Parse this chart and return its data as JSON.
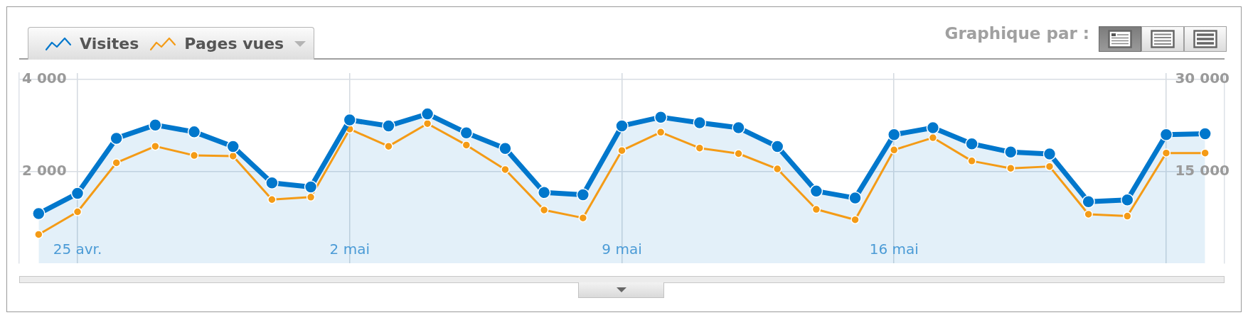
{
  "chart_data": {
    "type": "line",
    "x": [
      "--04-24",
      "--04-25",
      "--04-26",
      "--04-27",
      "--04-28",
      "--04-29",
      "--04-30",
      "--05-01",
      "--05-02",
      "--05-03",
      "--05-04",
      "--05-05",
      "--05-06",
      "--05-07",
      "--05-08",
      "--05-09",
      "--05-10",
      "--05-11",
      "--05-12",
      "--05-13",
      "--05-14",
      "--05-15",
      "--05-16",
      "--05-17",
      "--05-18",
      "--05-19",
      "--05-20",
      "--05-21",
      "--05-22",
      "--05-23",
      "--05-24"
    ],
    "xlim": [
      "--04-23T12:00",
      "--05-24T12:00"
    ],
    "xticks": [
      {
        "value": "--04-25",
        "label": "25 avr."
      },
      {
        "value": "--05-02",
        "label": "2 mai"
      },
      {
        "value": "--05-09",
        "label": "9 mai"
      },
      {
        "value": "--05-16",
        "label": "16 mai"
      },
      {
        "value": "--05-23",
        "label": null
      }
    ],
    "ylim": [
      0,
      4140
    ],
    "yticks": [
      {
        "value": 2000,
        "label": "2 000"
      },
      {
        "value": 4000,
        "label": "4 000"
      }
    ],
    "y2lim": [
      0,
      31050
    ],
    "y2ticks": [
      {
        "value": 15000,
        "label": "15 000"
      },
      {
        "value": 30000,
        "label": "30 000"
      }
    ],
    "series": [
      {
        "name": "Visites",
        "type": "area",
        "color": "#0077cc",
        "values": [
          1080,
          1520,
          2720,
          3010,
          2860,
          2540,
          1750,
          1660,
          3120,
          2990,
          3250,
          2840,
          2500,
          1540,
          1490,
          2990,
          3180,
          3060,
          2950,
          2540,
          1570,
          1420,
          2800,
          2950,
          2600,
          2420,
          2380,
          1340,
          1380,
          2800,
          2820
        ]
      },
      {
        "name": "Pages vues",
        "color": "#f49b16",
        "axis": "y2",
        "values": [
          4700,
          8400,
          16400,
          19100,
          17600,
          17500,
          10400,
          10800,
          21900,
          19100,
          22800,
          19300,
          15300,
          8700,
          7400,
          18400,
          21400,
          18800,
          17900,
          15400,
          8800,
          7100,
          18500,
          20500,
          16700,
          15500,
          15800,
          8000,
          7700,
          18000,
          18000
        ]
      }
    ],
    "grid": true,
    "legend": "top left",
    "marker": "circle",
    "line_style": "solid",
    "annotations": [
      "Graphique par :"
    ]
  }
}
